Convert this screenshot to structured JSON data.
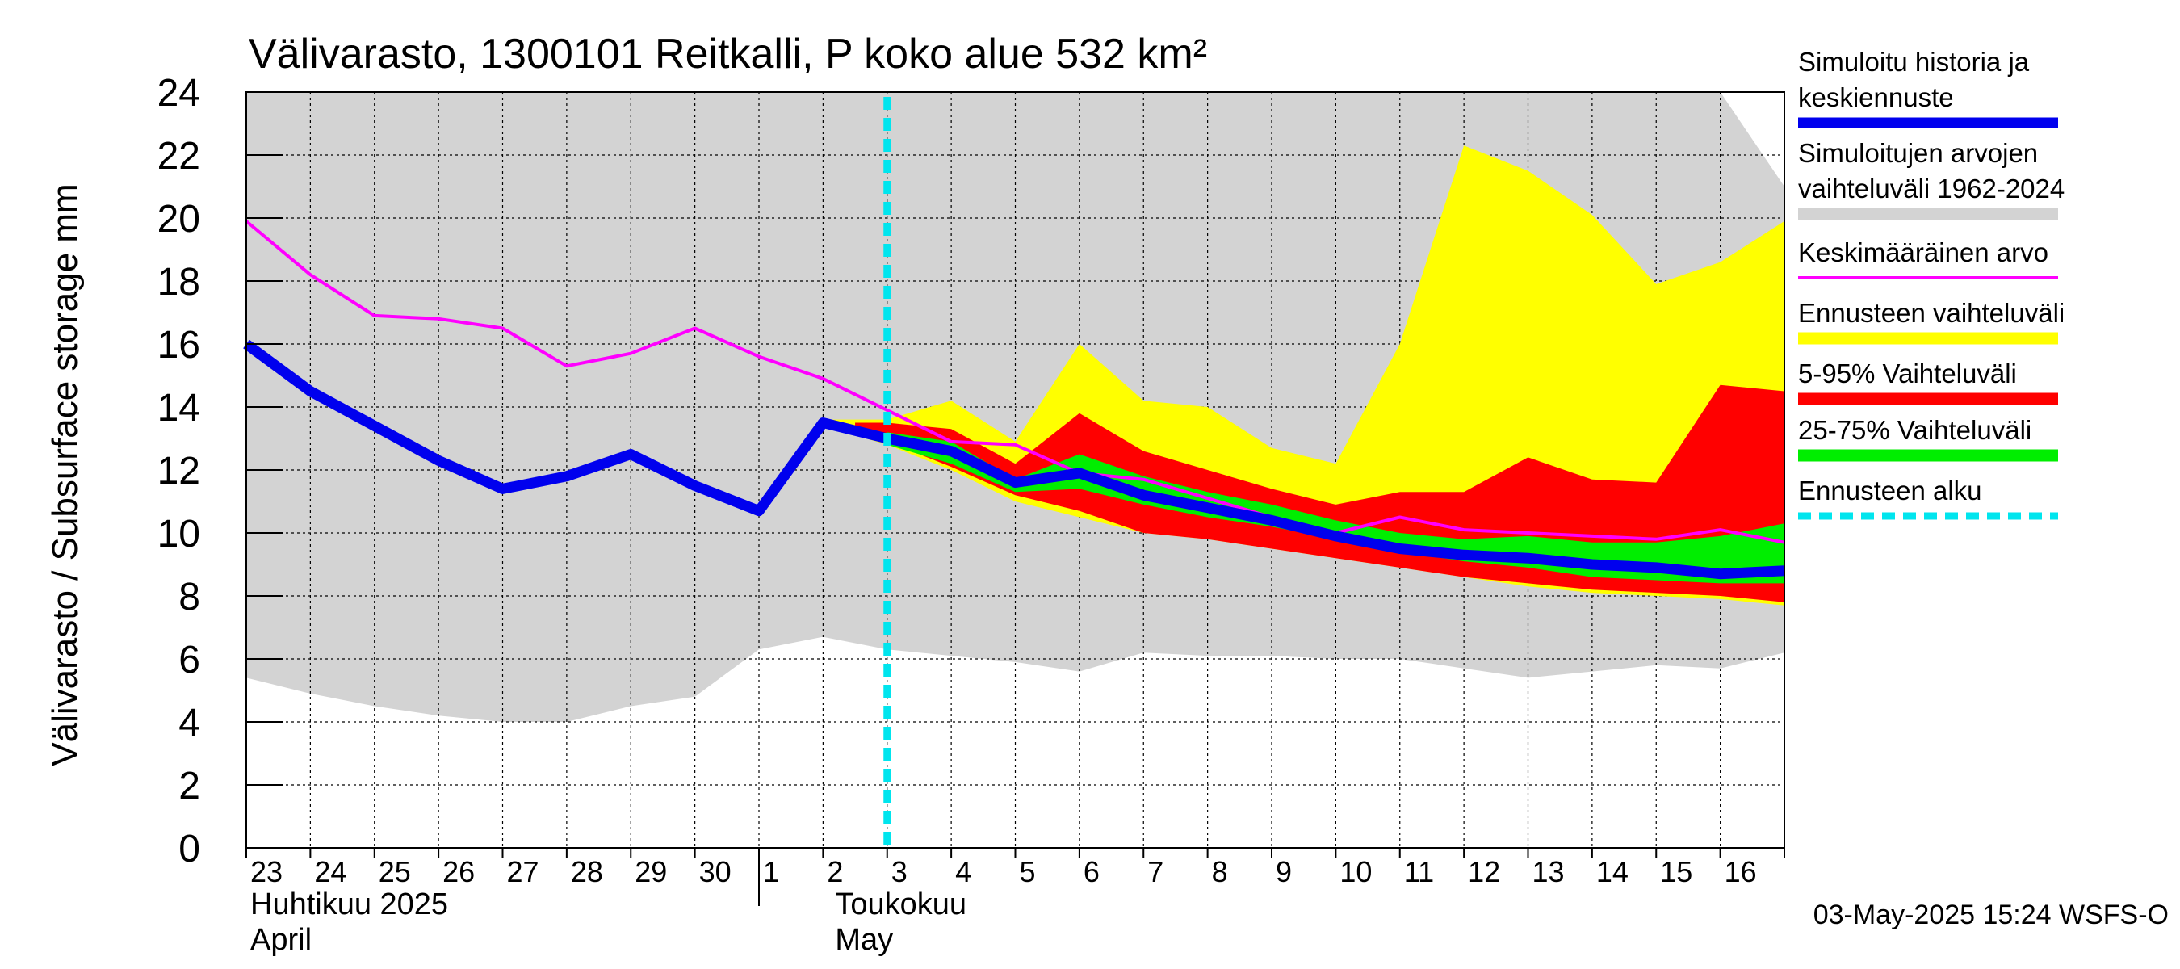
{
  "chart_data": {
    "type": "area",
    "title": "Välivarasto, 1300101 Reitkalli, P koko alue 532 km²",
    "ylabel": "Välivarasto / Subsurface storage  mm",
    "ylim": [
      0,
      24
    ],
    "yticks": [
      "0",
      "2",
      "4",
      "6",
      "8",
      "10",
      "12",
      "14",
      "16",
      "18",
      "20",
      "22",
      "24"
    ],
    "xlim": [
      0,
      24
    ],
    "day_labels": [
      "23",
      "24",
      "25",
      "26",
      "27",
      "28",
      "29",
      "30",
      "1",
      "2",
      "3",
      "4",
      "5",
      "6",
      "7",
      "8",
      "9",
      "10",
      "11",
      "12",
      "13",
      "14",
      "15",
      "16"
    ],
    "month_labels": [
      {
        "fi": "Huhtikuu  2025",
        "en": "April"
      },
      {
        "fi": "Toukokuu",
        "en": "May"
      }
    ],
    "forecast_start_x": 10,
    "timestamp": "03-May-2025 15:24 WSFS-O",
    "legend": [
      {
        "label": "Simuloitu historia ja keskiennuste",
        "lines": [
          "Simuloitu historia ja",
          "keskiennuste"
        ],
        "color": "#0000ee",
        "style": "thick"
      },
      {
        "label": "Simuloitujen arvojen vaihteluväli 1962-2024",
        "lines": [
          "Simuloitujen arvojen",
          "vaihteluväli 1962-2024"
        ],
        "color": "#d3d3d3",
        "style": "band"
      },
      {
        "label": "Keskimääräinen arvo",
        "lines": [
          "Keskimääräinen arvo"
        ],
        "color": "#ff00ff",
        "style": "line"
      },
      {
        "label": "Ennusteen vaihteluväli",
        "lines": [
          "Ennusteen vaihteluväli"
        ],
        "color": "#ffff00",
        "style": "band"
      },
      {
        "label": "5-95% Vaihteluväli",
        "lines": [
          "5-95% Vaihteluväli"
        ],
        "color": "#ff0000",
        "style": "band"
      },
      {
        "label": "25-75% Vaihteluväli",
        "lines": [
          "25-75% Vaihteluväli"
        ],
        "color": "#00ee00",
        "style": "band"
      },
      {
        "label": "Ennusteen alku",
        "lines": [
          "Ennusteen alku"
        ],
        "color": "#00e5ee",
        "style": "dashed"
      }
    ],
    "historical_range": {
      "x": [
        0,
        1,
        2,
        3,
        4,
        5,
        6,
        7,
        8,
        9,
        10,
        11,
        12,
        13,
        14,
        15,
        16,
        17,
        18,
        19,
        20,
        21,
        22,
        23,
        24
      ],
      "lower": [
        5.4,
        4.9,
        4.5,
        4.2,
        4.0,
        4.0,
        4.5,
        4.8,
        6.3,
        6.7,
        6.3,
        6.1,
        5.9,
        5.6,
        6.2,
        6.1,
        6.1,
        6.0,
        6.0,
        5.7,
        5.4,
        5.6,
        5.8,
        5.7,
        6.2
      ],
      "upper": [
        24,
        24,
        24,
        24,
        24,
        24,
        24,
        24,
        24,
        24,
        24,
        24,
        24,
        24,
        24,
        24,
        24,
        24,
        24,
        24,
        24,
        24,
        24,
        24,
        21.0
      ]
    },
    "forecast_range": {
      "x": [
        9,
        10,
        11,
        12,
        13,
        14,
        15,
        16,
        17,
        18,
        19,
        20,
        21,
        22,
        23,
        24
      ],
      "lower": [
        13.4,
        12.8,
        12.0,
        11.0,
        10.5,
        10.0,
        9.8,
        9.5,
        9.2,
        8.9,
        8.6,
        8.3,
        8.1,
        8.0,
        7.9,
        7.7
      ],
      "upper": [
        13.6,
        13.6,
        14.2,
        12.9,
        16.0,
        14.2,
        14.0,
        12.7,
        12.2,
        16.0,
        22.3,
        21.5,
        20.1,
        17.9,
        18.6,
        19.9
      ]
    },
    "p5_95": {
      "x": [
        9.5,
        10,
        11,
        12,
        13,
        14,
        15,
        16,
        17,
        18,
        19,
        20,
        21,
        22,
        23,
        24
      ],
      "lower": [
        13.2,
        12.9,
        12.1,
        11.2,
        10.7,
        10.0,
        9.8,
        9.5,
        9.2,
        8.9,
        8.6,
        8.4,
        8.2,
        8.1,
        8.0,
        7.8
      ],
      "upper": [
        13.5,
        13.5,
        13.3,
        12.2,
        13.8,
        12.6,
        12.0,
        11.4,
        10.9,
        11.3,
        11.3,
        12.4,
        11.7,
        11.6,
        14.7,
        14.5
      ]
    },
    "p25_75": {
      "x": [
        10,
        11,
        12,
        13,
        14,
        15,
        16,
        17,
        18,
        19,
        20,
        21,
        22,
        23,
        24
      ],
      "lower": [
        12.8,
        12.2,
        11.3,
        11.4,
        10.9,
        10.5,
        10.2,
        9.8,
        9.4,
        9.1,
        8.9,
        8.6,
        8.5,
        8.4,
        8.4
      ],
      "upper": [
        13.2,
        12.9,
        11.7,
        12.5,
        11.8,
        11.3,
        10.9,
        10.4,
        10.0,
        9.8,
        9.9,
        9.7,
        9.7,
        9.9,
        10.3
      ]
    },
    "mean": {
      "x": [
        0,
        1,
        2,
        3,
        4,
        5,
        6,
        7,
        8,
        9,
        10,
        11,
        12,
        13,
        14,
        15,
        16,
        17,
        18,
        19,
        20,
        21,
        22,
        23,
        24
      ],
      "values": [
        19.9,
        18.2,
        16.9,
        16.8,
        16.5,
        15.3,
        15.7,
        16.5,
        15.6,
        14.9,
        13.9,
        12.9,
        12.8,
        11.9,
        11.7,
        11.1,
        10.5,
        10.0,
        10.5,
        10.1,
        10.0,
        9.9,
        9.8,
        10.1,
        9.7
      ]
    },
    "simulated": {
      "x": [
        0,
        1,
        2,
        3,
        4,
        5,
        6,
        7,
        8,
        9,
        10,
        11,
        12,
        13,
        14,
        15,
        16,
        17,
        18,
        19,
        20,
        21,
        22,
        23,
        24
      ],
      "values": [
        16.0,
        14.5,
        13.4,
        12.3,
        11.4,
        11.8,
        12.5,
        11.5,
        10.7,
        13.5,
        13.0,
        12.6,
        11.6,
        11.9,
        11.2,
        10.8,
        10.4,
        9.9,
        9.5,
        9.3,
        9.2,
        9.0,
        8.9,
        8.7,
        8.8
      ]
    }
  }
}
